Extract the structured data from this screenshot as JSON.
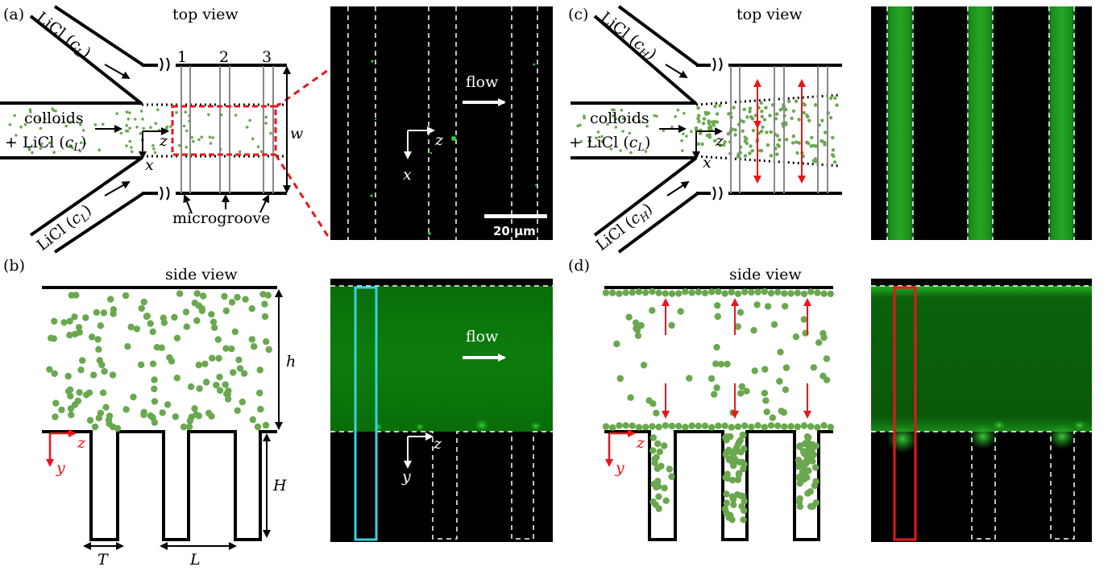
{
  "panels": {
    "a": {
      "tag": "(a)",
      "view": "top view",
      "inlet_top": "LiCl (",
      "inlet_top_c": "c",
      "inlet_top_sub": "L",
      "inlet_bottom": "LiCl (",
      "inlet_bottom_c": "c",
      "inlet_bottom_sub": "L",
      "center_line1": "colloids",
      "center_line2": "+ LiCl (",
      "center_c": "c",
      "center_sub": "L",
      "groove_numbers": [
        "1",
        "2",
        "3"
      ],
      "groove_label": "microgroove",
      "axis_z": "z",
      "axis_x": "x",
      "width": "w"
    },
    "a_image": {
      "flow": "flow",
      "axis_z": "z",
      "axis_x": "x",
      "scale_bar": "20 µm"
    },
    "b": {
      "tag": "(b)",
      "view": "side view",
      "axis_z": "z",
      "axis_y": "y",
      "height_h": "h",
      "height_H": "H",
      "T": "T",
      "L": "L"
    },
    "b_image": {
      "flow": "flow",
      "axis_z": "z",
      "axis_y": "y"
    },
    "c": {
      "tag": "(c)",
      "view": "top view",
      "inlet_top": "LiCl (",
      "inlet_top_c": "c",
      "inlet_top_sub": "H",
      "inlet_bottom": "LiCl (",
      "inlet_bottom_c": "c",
      "inlet_bottom_sub": "H",
      "center_line1": "colloids",
      "center_line2": "+ LiCl (",
      "center_c": "c",
      "center_sub": "L",
      "axis_z": "z",
      "axis_x": "x"
    },
    "d": {
      "tag": "(d)",
      "view": "side view",
      "axis_z": "z",
      "axis_y": "y"
    }
  },
  "colors": {
    "particle": "#6aa84f",
    "fluor": "#1fbf1f",
    "arrow_red": "#e8161b",
    "highlight_cyan": "#37d3e0",
    "highlight_red": "#e8161b",
    "groove_gray": "#888888"
  }
}
